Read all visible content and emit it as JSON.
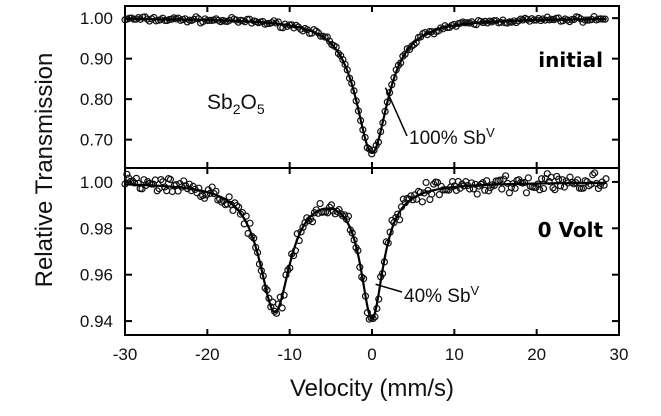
{
  "chart_data": [
    {
      "type": "scatter",
      "panel": "top",
      "series": [
        {
          "name": "Sb2O5",
          "model": "singlet",
          "baseline": 1.0,
          "lines": [
            {
              "center": 0.0,
              "depth": 0.333,
              "hwhm": 2.4
            }
          ]
        }
      ],
      "xlim": [
        -30,
        30
      ],
      "ylim": [
        0.63,
        1.03
      ],
      "yticks": [
        "1.00",
        "0.90",
        "0.80",
        "0.70"
      ],
      "ytick_values": [
        1.0,
        0.9,
        0.8,
        0.7
      ],
      "condition_label": "initial",
      "sample_label": {
        "base": "Sb",
        "sub1": "2",
        "mid": "O",
        "sub2": "5"
      },
      "annotation": {
        "text": "100% Sb",
        "sup": "V",
        "at_x": 2.0
      }
    },
    {
      "type": "scatter",
      "panel": "bottom",
      "series": [
        {
          "name": "Sb2O5 at 0 Volt",
          "model": "doublet",
          "baseline": 1.0,
          "lines": [
            {
              "center": -11.8,
              "depth": 0.055,
              "hwhm": 2.3
            },
            {
              "center": 0.0,
              "depth": 0.057,
              "hwhm": 1.7
            }
          ]
        }
      ],
      "xlim": [
        -30,
        30
      ],
      "ylim": [
        0.934,
        1.006
      ],
      "yticks": [
        "1.00",
        "0.98",
        "0.96",
        "0.94"
      ],
      "ytick_values": [
        1.0,
        0.98,
        0.96,
        0.94
      ],
      "condition_label": "0 Volt",
      "annotation": {
        "text": "40% Sb",
        "sup": "V",
        "at_x": 0.8
      }
    }
  ],
  "xaxis": {
    "label": "Velocity (mm/s)",
    "ticks": [
      "-30",
      "-20",
      "-10",
      "0",
      "10",
      "20",
      "30"
    ],
    "tick_values": [
      -30,
      -20,
      -10,
      0,
      10,
      20,
      30
    ]
  },
  "yaxis": {
    "label": "Relative Transmission"
  }
}
